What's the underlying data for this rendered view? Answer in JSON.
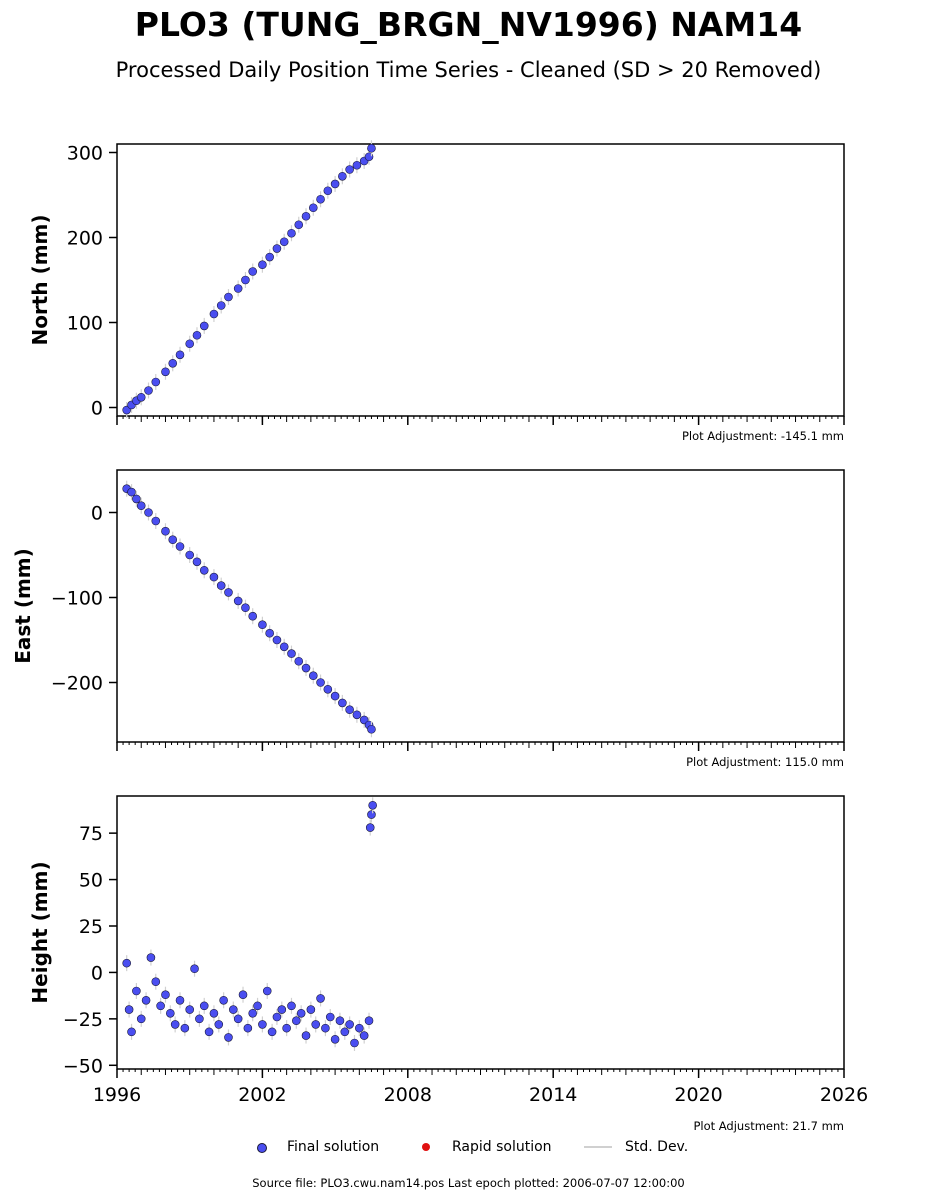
{
  "title": "PLO3 (TUNG_BRGN_NV1996) NAM14",
  "subtitle": "Processed Daily Position Time Series - Cleaned (SD > 20 Removed)",
  "legend": {
    "final": "Final solution",
    "rapid": "Rapid solution",
    "std": "Std. Dev."
  },
  "colors": {
    "final": "#4a4ef0",
    "final_edge": "#1a1a3a",
    "rapid": "#e01010",
    "std": "#d0d0d0"
  },
  "source": "Source file: PLO3.cwu.nam14.pos  Last epoch plotted: 2006-07-07 12:00:00",
  "chart_data": [
    {
      "type": "scatter",
      "ylabel": "North (mm)",
      "adjustment": "Plot Adjustment: -145.1 mm",
      "xlim": [
        1996,
        2026
      ],
      "ylim": [
        -10,
        310
      ],
      "yticks": [
        0,
        100,
        200,
        300
      ],
      "xticklabels": [],
      "series": [
        {
          "name": "Final solution",
          "x": [
            1996.4,
            1996.6,
            1996.8,
            1997.0,
            1997.3,
            1997.6,
            1998.0,
            1998.3,
            1998.6,
            1999.0,
            1999.3,
            1999.6,
            2000.0,
            2000.3,
            2000.6,
            2001.0,
            2001.3,
            2001.6,
            2002.0,
            2002.3,
            2002.6,
            2002.9,
            2003.2,
            2003.5,
            2003.8,
            2004.1,
            2004.4,
            2004.7,
            2005.0,
            2005.3,
            2005.6,
            2005.9,
            2006.2,
            2006.4,
            2006.5
          ],
          "y": [
            -3,
            3,
            8,
            12,
            20,
            30,
            42,
            52,
            62,
            75,
            85,
            96,
            110,
            120,
            130,
            140,
            150,
            160,
            168,
            177,
            187,
            195,
            205,
            215,
            225,
            235,
            245,
            255,
            263,
            272,
            280,
            285,
            290,
            295,
            305
          ]
        }
      ]
    },
    {
      "type": "scatter",
      "ylabel": "East (mm)",
      "adjustment": "Plot Adjustment: 115.0 mm",
      "xlim": [
        1996,
        2026
      ],
      "ylim": [
        -270,
        50
      ],
      "yticks": [
        0,
        -100,
        -200
      ],
      "xticklabels": [],
      "series": [
        {
          "name": "Final solution",
          "x": [
            1996.4,
            1996.6,
            1996.8,
            1997.0,
            1997.3,
            1997.6,
            1998.0,
            1998.3,
            1998.6,
            1999.0,
            1999.3,
            1999.6,
            2000.0,
            2000.3,
            2000.6,
            2001.0,
            2001.3,
            2001.6,
            2002.0,
            2002.3,
            2002.6,
            2002.9,
            2003.2,
            2003.5,
            2003.8,
            2004.1,
            2004.4,
            2004.7,
            2005.0,
            2005.3,
            2005.6,
            2005.9,
            2006.2,
            2006.4,
            2006.5
          ],
          "y": [
            28,
            24,
            16,
            8,
            0,
            -10,
            -22,
            -32,
            -40,
            -50,
            -58,
            -68,
            -76,
            -86,
            -94,
            -104,
            -112,
            -122,
            -132,
            -142,
            -150,
            -158,
            -166,
            -175,
            -183,
            -192,
            -200,
            -208,
            -216,
            -224,
            -232,
            -238,
            -244,
            -250,
            -255
          ]
        }
      ]
    },
    {
      "type": "scatter",
      "ylabel": "Height (mm)",
      "adjustment": "Plot Adjustment: 21.7 mm",
      "xlim": [
        1996,
        2026
      ],
      "ylim": [
        -52,
        95
      ],
      "yticks": [
        75,
        50,
        25,
        0,
        -25,
        -50
      ],
      "xticklabels": [
        "1996",
        "2002",
        "2008",
        "2014",
        "2020",
        "2026"
      ],
      "series": [
        {
          "name": "Final solution",
          "x": [
            1996.4,
            1996.5,
            1996.6,
            1996.8,
            1997.0,
            1997.2,
            1997.4,
            1997.6,
            1997.8,
            1998.0,
            1998.2,
            1998.4,
            1998.6,
            1998.8,
            1999.0,
            1999.2,
            1999.4,
            1999.6,
            1999.8,
            2000.0,
            2000.2,
            2000.4,
            2000.6,
            2000.8,
            2001.0,
            2001.2,
            2001.4,
            2001.6,
            2001.8,
            2002.0,
            2002.2,
            2002.4,
            2002.6,
            2002.8,
            2003.0,
            2003.2,
            2003.4,
            2003.6,
            2003.8,
            2004.0,
            2004.2,
            2004.4,
            2004.6,
            2004.8,
            2005.0,
            2005.2,
            2005.4,
            2005.6,
            2005.8,
            2006.0,
            2006.2,
            2006.4,
            2006.45,
            2006.5,
            2006.55
          ],
          "y": [
            5,
            -20,
            -32,
            -10,
            -25,
            -15,
            8,
            -5,
            -18,
            -12,
            -22,
            -28,
            -15,
            -30,
            -20,
            2,
            -25,
            -18,
            -32,
            -22,
            -28,
            -15,
            -35,
            -20,
            -25,
            -12,
            -30,
            -22,
            -18,
            -28,
            -10,
            -32,
            -24,
            -20,
            -30,
            -18,
            -26,
            -22,
            -34,
            -20,
            -28,
            -14,
            -30,
            -24,
            -36,
            -26,
            -32,
            -28,
            -38,
            -30,
            -34,
            -26,
            78,
            85,
            90
          ]
        }
      ]
    }
  ]
}
